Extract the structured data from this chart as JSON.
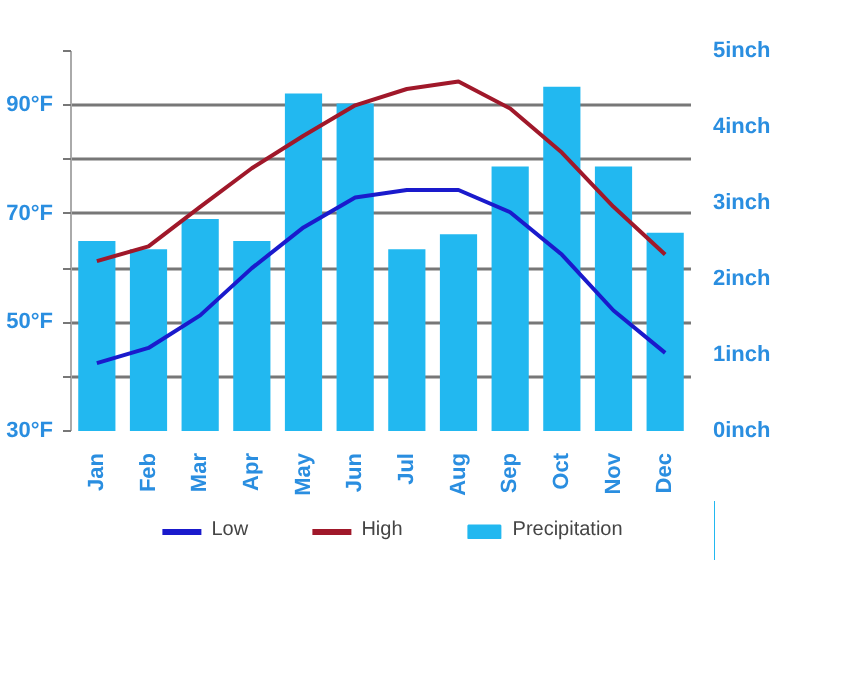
{
  "chart_data": {
    "type": "bar",
    "categories": [
      "Jan",
      "Feb",
      "Mar",
      "Apr",
      "May",
      "Jun",
      "Jul",
      "Aug",
      "Sep",
      "Oct",
      "Nov",
      "Dec"
    ],
    "series": [
      {
        "name": "Low",
        "type": "line",
        "color": "#1a1acc",
        "values": [
          42.5,
          45.3,
          51.3,
          60,
          67.5,
          73,
          74.4,
          74.4,
          70.3,
          62.5,
          52.2,
          44.4
        ]
      },
      {
        "name": "High",
        "type": "line",
        "color": "#a0182a",
        "values": [
          61.3,
          64,
          71.3,
          78.4,
          84.4,
          90,
          93,
          94.4,
          89.4,
          81.3,
          71.3,
          62.5
        ]
      },
      {
        "name": "Precipitation",
        "axis": "y2",
        "color": "#22b8f0",
        "values": [
          2.5,
          2.39,
          2.79,
          2.5,
          4.44,
          4.31,
          2.39,
          2.59,
          3.48,
          4.53,
          3.48,
          2.61
        ]
      }
    ],
    "ylim": [
      30,
      100
    ],
    "yticks": [
      {
        "value": 30,
        "label": "30°F"
      },
      {
        "value": 40,
        "label": null
      },
      {
        "value": 50,
        "label": "50°F"
      },
      {
        "value": 60,
        "label": null
      },
      {
        "value": 70,
        "label": "70°F"
      },
      {
        "value": 80,
        "label": null
      },
      {
        "value": 90,
        "label": "90°F"
      },
      {
        "value": 100,
        "label": null
      }
    ],
    "y2lim": [
      0,
      5
    ],
    "y2ticks": [
      {
        "value": 0,
        "label": "0inch"
      },
      {
        "value": 1,
        "label": "1inch"
      },
      {
        "value": 2,
        "label": "2inch"
      },
      {
        "value": 3,
        "label": "3inch"
      },
      {
        "value": 4,
        "label": "4inch"
      },
      {
        "value": 5,
        "label": "5inch"
      }
    ],
    "grid": "y",
    "legend": "bottom"
  }
}
